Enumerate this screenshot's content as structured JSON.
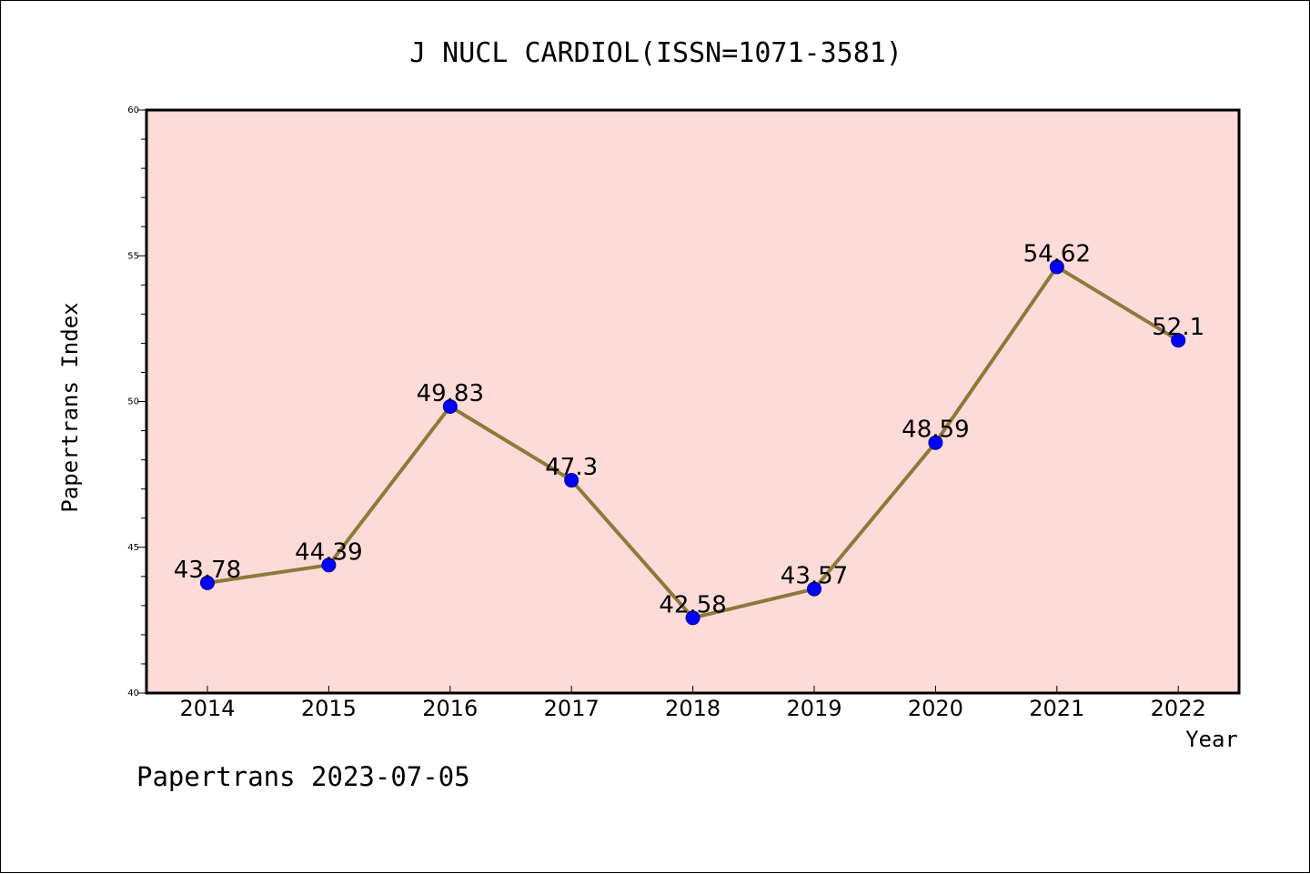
{
  "chart_data": {
    "type": "line",
    "title": "J NUCL CARDIOL(ISSN=1071-3581)",
    "xlabel": "Year",
    "ylabel": "Papertrans Index",
    "categories": [
      "2014",
      "2015",
      "2016",
      "2017",
      "2018",
      "2019",
      "2020",
      "2021",
      "2022"
    ],
    "series": [
      {
        "values": [
          43.78,
          44.39,
          49.83,
          47.3,
          42.58,
          43.57,
          48.59,
          54.62,
          52.1
        ],
        "data_labels": [
          "43.78",
          "44.39",
          "49.83",
          "47.3",
          "42.58",
          "43.57",
          "48.59",
          "54.62",
          "52.1"
        ]
      }
    ],
    "ylim": [
      40,
      60
    ],
    "yticks": [
      "40",
      "45",
      "50",
      "55",
      "60"
    ],
    "yticks_values": [
      40,
      45,
      50,
      55,
      60
    ],
    "grid": false,
    "line_color": "#8c7a3a",
    "marker_color": "#0000ff",
    "plot_background": "#fddbd8"
  },
  "footer": {
    "text": "Papertrans 2023-07-05"
  }
}
